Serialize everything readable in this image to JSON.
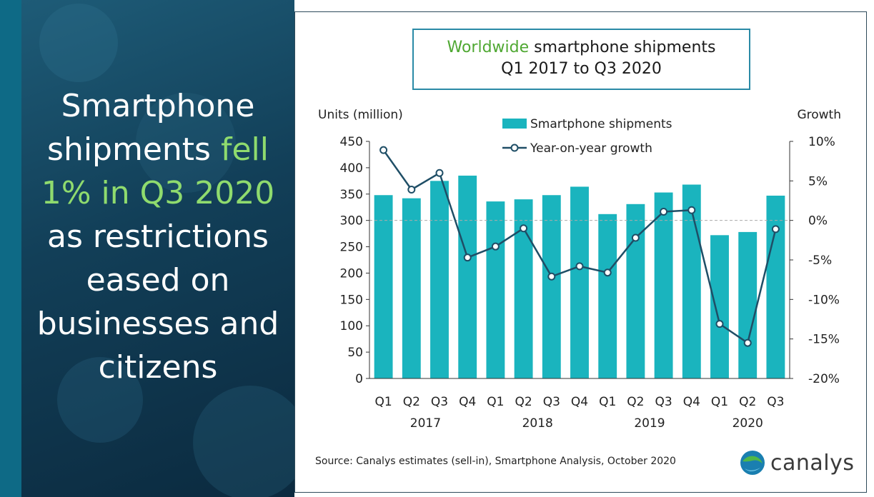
{
  "headline": {
    "part1": "Smartphone shipments ",
    "highlight": "fell 1% in Q3 2020",
    "part2": " as restrictions eased on businesses and citizens"
  },
  "colors": {
    "bar": "#1ab4be",
    "line": "#1f4e66",
    "accent": "#4fa832",
    "highlight": "#8fdb6e"
  },
  "chart_data": {
    "type": "bar",
    "title": "Worldwide smartphone shipments",
    "title_accent": "Worldwide",
    "title_rest": " smartphone shipments",
    "subtitle": "Q1 2017 to Q3 2020",
    "ylabel": "Units (million)",
    "y2label": "Growth",
    "ylim": [
      0,
      450
    ],
    "y2lim": [
      -20,
      10
    ],
    "yticks": [
      "0",
      "50",
      "100",
      "150",
      "200",
      "250",
      "300",
      "350",
      "400",
      "450"
    ],
    "y2ticks": [
      "-20%",
      "-15%",
      "-10%",
      "-5%",
      "0%",
      "5%",
      "10%"
    ],
    "categories": [
      "Q1",
      "Q2",
      "Q3",
      "Q4",
      "Q1",
      "Q2",
      "Q3",
      "Q4",
      "Q1",
      "Q2",
      "Q3",
      "Q4",
      "Q1",
      "Q2",
      "Q3"
    ],
    "years": [
      {
        "label": "2017",
        "first": 0,
        "last": 3
      },
      {
        "label": "2018",
        "first": 4,
        "last": 7
      },
      {
        "label": "2019",
        "first": 8,
        "last": 11
      },
      {
        "label": "2020",
        "first": 12,
        "last": 14
      }
    ],
    "series": [
      {
        "name": "Smartphone shipments",
        "type": "bar",
        "axis": "left",
        "values": [
          348,
          342,
          375,
          385,
          336,
          340,
          348,
          364,
          312,
          331,
          353,
          368,
          272,
          278,
          347
        ]
      },
      {
        "name": "Year-on-year growth",
        "type": "line",
        "axis": "right",
        "unit": "%",
        "values": [
          8.9,
          3.9,
          6.0,
          -4.7,
          -3.3,
          -1.0,
          -7.1,
          -5.8,
          -6.6,
          -2.2,
          1.1,
          1.3,
          -13.1,
          -15.5,
          -1.1
        ]
      }
    ],
    "legend": [
      "Smartphone shipments",
      "Year-on-year growth"
    ]
  },
  "source": "Source: Canalys estimates (sell-in), Smartphone Analysis, October 2020",
  "logo_text": "canalys"
}
